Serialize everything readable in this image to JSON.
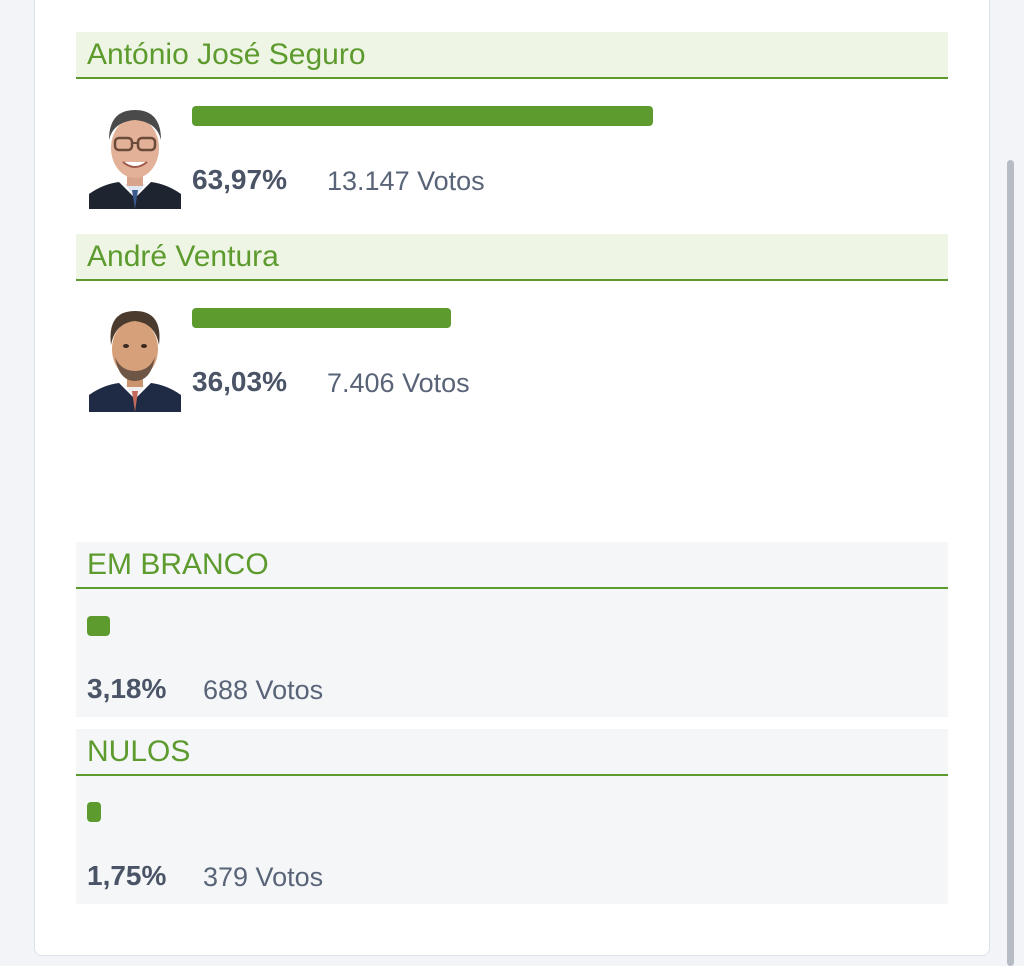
{
  "candidates": [
    {
      "name": "António José Seguro",
      "percent": "63,97%",
      "votes": "13.147 Votos",
      "share": 0.6397
    },
    {
      "name": "André Ventura",
      "percent": "36,03%",
      "votes": "7.406 Votos",
      "share": 0.3603
    }
  ],
  "blank": {
    "label": "EM BRANCO",
    "percent": "3,18%",
    "votes": "688 Votos",
    "share": 0.0318
  },
  "null_votes": {
    "label": "NULOS",
    "percent": "1,75%",
    "votes": "379 Votos",
    "share": 0.0175
  },
  "colors": {
    "accent": "#5d9b2e",
    "header_bg": "#eef5e4",
    "special_bg": "#f4f6f8",
    "text_dark": "#4a5466",
    "text_muted": "#5a6478"
  }
}
